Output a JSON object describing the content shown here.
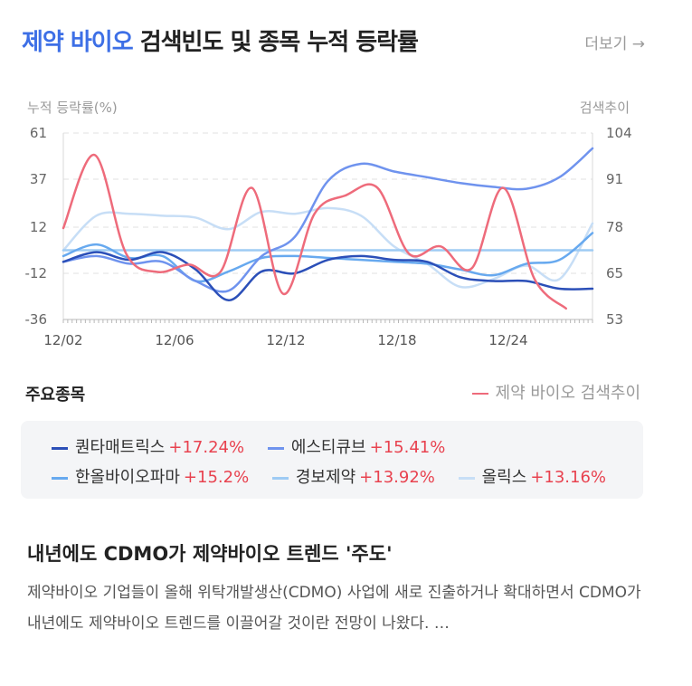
{
  "header": {
    "title_accent": "제약 바이오",
    "title_rest": "검색빈도 및 종목 누적 등락률",
    "more_label": "더보기 →"
  },
  "chart_data": {
    "type": "line",
    "left_axis_label": "누적 등락률(%)",
    "right_axis_label": "검색추이",
    "left_ticks": [
      61,
      37,
      12,
      -12,
      -36
    ],
    "right_ticks": [
      104,
      91,
      78,
      65,
      53
    ],
    "left_range": [
      -36,
      61
    ],
    "right_range": [
      53,
      104
    ],
    "x_ticks": [
      "12/02",
      "12/06",
      "12/12",
      "12/18",
      "12/24"
    ],
    "grid": "horizontal dashed",
    "series": [
      {
        "name": "퀀타매트릭스",
        "axis": "left",
        "color": "#2b4fb8",
        "values": [
          -6,
          -1,
          -5,
          -1,
          -10,
          -26,
          -11,
          -12,
          -5,
          -3,
          -5,
          -6,
          -14,
          -16,
          -16,
          -20,
          -20
        ]
      },
      {
        "name": "에스티큐브",
        "axis": "left",
        "color": "#6f93ee",
        "values": [
          -6,
          -3,
          -7,
          -6,
          -16,
          -21,
          -3,
          7,
          36,
          45,
          41,
          38,
          35,
          33,
          32,
          38,
          53
        ]
      },
      {
        "name": "한올바이오파마",
        "axis": "left",
        "color": "#67a9ef",
        "values": [
          -3,
          3,
          -4,
          -3,
          -16,
          -11,
          -4,
          -3,
          -4,
          -5,
          -6,
          -7,
          -10,
          -13,
          -7,
          -5,
          9
        ]
      },
      {
        "name": "경보제약",
        "axis": "left",
        "color": "#9ecbf4",
        "values": [
          0,
          0,
          0,
          0,
          0,
          0,
          0,
          0,
          0,
          0,
          0,
          0,
          0,
          0,
          0,
          0,
          0
        ]
      },
      {
        "name": "올릭스",
        "axis": "left",
        "color": "#c7def6",
        "values": [
          0,
          18,
          19,
          18,
          17,
          11,
          20,
          19,
          22,
          18,
          2,
          -7,
          -19,
          -15,
          -8,
          -15,
          14
        ]
      },
      {
        "name": "제약 바이오 검색추이",
        "axis": "right",
        "color": "#ee6b7b",
        "values": [
          78,
          98,
          71,
          66,
          68,
          66,
          89,
          60,
          82,
          87,
          89,
          71,
          73,
          67,
          89,
          64,
          56
        ]
      }
    ]
  },
  "legend": {
    "heading": "주요종목",
    "search_label": "제약 바이오 검색추이"
  },
  "stocks": [
    {
      "name": "퀀타매트릭스",
      "change": "+17.24%",
      "color": "#2b4fb8"
    },
    {
      "name": "에스티큐브",
      "change": "+15.41%",
      "color": "#6f93ee"
    },
    {
      "name": "한올바이오파마",
      "change": "+15.2%",
      "color": "#67a9ef"
    },
    {
      "name": "경보제약",
      "change": "+13.92%",
      "color": "#9ecbf4"
    },
    {
      "name": "올릭스",
      "change": "+13.16%",
      "color": "#c7def6"
    }
  ],
  "news": {
    "title": "내년에도 CDMO가 제약바이오 트렌드 '주도'",
    "body": "제약바이오 기업들이 올해 위탁개발생산(CDMO) 사업에 새로 진출하거나 확대하면서 CDMO가 내년에도 제약바이오 트렌드를 이끌어갈 것이란 전망이 나왔다. …"
  }
}
